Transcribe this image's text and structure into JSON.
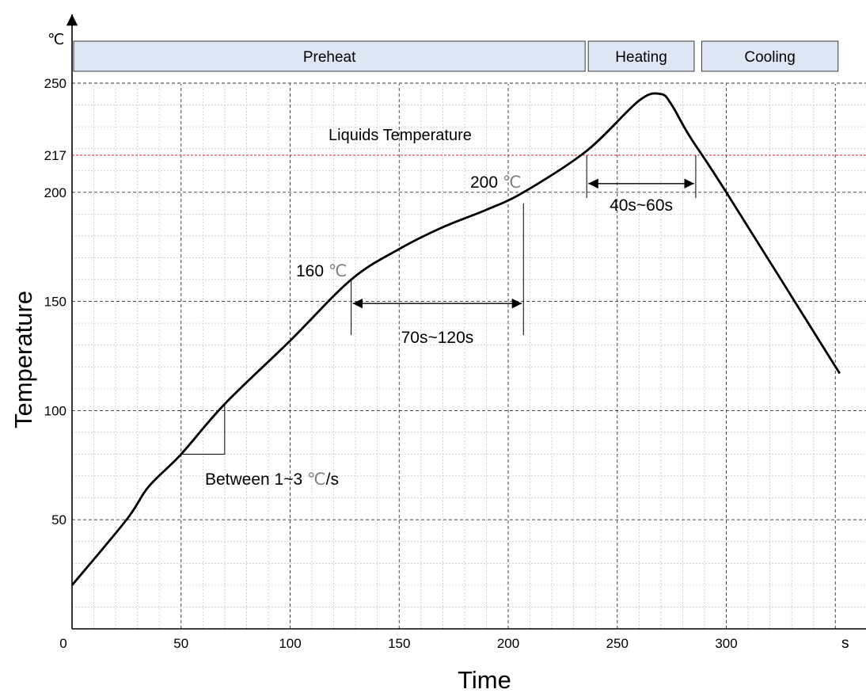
{
  "chart_data": {
    "type": "line",
    "xlabel": "Time",
    "ylabel": "Temperature",
    "y_unit": "℃",
    "x_unit": "s",
    "xlim": [
      0,
      352
    ],
    "ylim": [
      0,
      250
    ],
    "x_ticks": [
      0,
      50,
      100,
      150,
      200,
      250,
      300
    ],
    "y_ticks": [
      50,
      100,
      150,
      200,
      217,
      250
    ],
    "grid": true,
    "phases": [
      {
        "label": "Preheat",
        "start": 0,
        "end": 236
      },
      {
        "label": "Heating",
        "start": 236,
        "end": 286
      },
      {
        "label": "Cooling",
        "start": 288,
        "end": 352
      }
    ],
    "reference_line": {
      "label": "Liquids Temperature",
      "y": 217,
      "color": "#e0393e"
    },
    "series": [
      {
        "x": [
          0,
          25,
          35,
          50,
          70,
          100,
          128,
          150,
          170,
          190,
          207,
          236,
          260,
          270,
          275,
          283,
          300,
          352
        ],
        "y": [
          20,
          50,
          65,
          80,
          103,
          132,
          160,
          174,
          184,
          192,
          200,
          219,
          242,
          245,
          240,
          226,
          200,
          117
        ]
      }
    ],
    "annotations": {
      "t160": {
        "value": "160",
        "unit": "℃",
        "x": 128,
        "y": 160
      },
      "t200": {
        "value": "200",
        "unit": "℃",
        "x": 207,
        "y": 200
      },
      "soak": {
        "label": "70s~120s",
        "x1": 128,
        "x2": 207,
        "y": 140
      },
      "reflow": {
        "label": "40s~60s",
        "x1": 236,
        "x2": 286,
        "y": 204
      },
      "rate": {
        "prefix": "Between 1~3",
        "unit": "℃",
        "suffix": "/s",
        "x1": 50,
        "x2": 70,
        "y1": 80,
        "y2": 103
      }
    }
  }
}
